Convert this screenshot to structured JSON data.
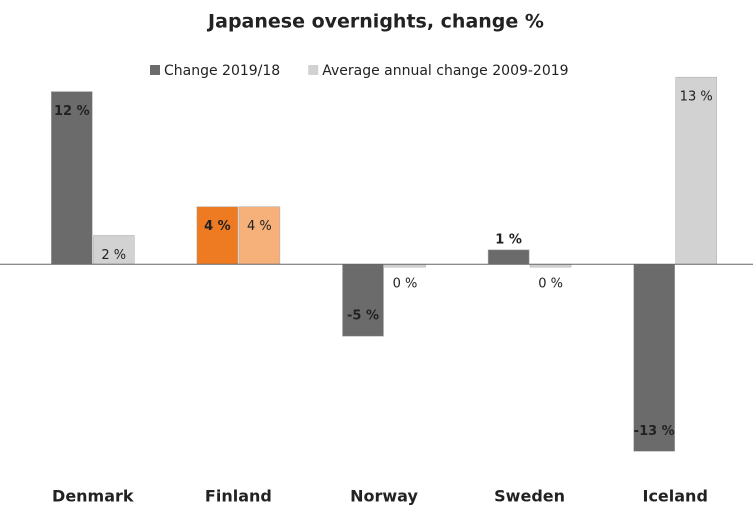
{
  "chart_data": {
    "type": "bar",
    "title": "Japanese overnights, change %",
    "categories": [
      "Denmark",
      "Finland",
      "Norway",
      "Sweden",
      "Iceland"
    ],
    "series": [
      {
        "name": "Change 2019/18",
        "color": "#6b6b6b",
        "colors": [
          "#6b6b6b",
          "#ee7a22",
          "#6b6b6b",
          "#6b6b6b",
          "#6b6b6b"
        ],
        "values": [
          12,
          4,
          -5,
          1,
          -13
        ],
        "value_labels": [
          "12 %",
          "4 %",
          "-5 %",
          "1 %",
          "-13 %"
        ]
      },
      {
        "name": "Average annual change 2009-2019",
        "color": "#d2d2d2",
        "colors": [
          "#d2d2d2",
          "#f6b07a",
          "#d2d2d2",
          "#d2d2d2",
          "#d2d2d2"
        ],
        "values": [
          2,
          4,
          -0.2,
          -0.2,
          13
        ],
        "value_labels": [
          "2 %",
          "4 %",
          "0 %",
          "0 %",
          "13 %"
        ]
      }
    ],
    "ylim": [
      -14.3,
      13.5
    ],
    "legend": "top"
  }
}
